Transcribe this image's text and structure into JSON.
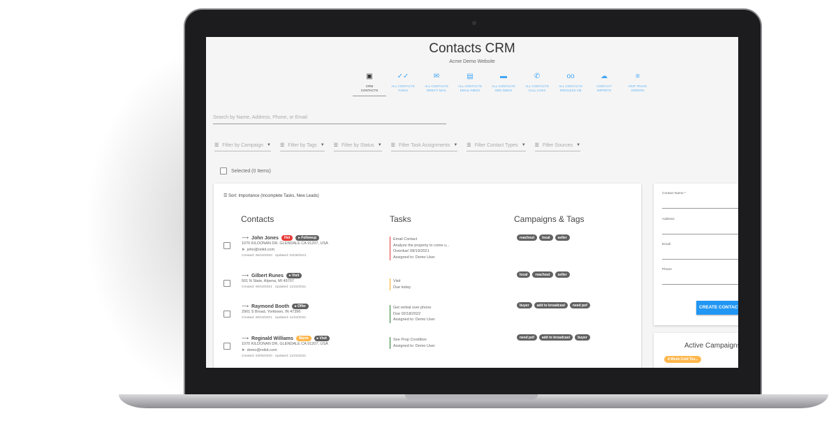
{
  "header": {
    "title": "Contacts CRM",
    "subtitle": "Acme Demo Website"
  },
  "nav": [
    {
      "icon": "clipboard-icon",
      "label1": "CRM",
      "label2": "CONTACTS"
    },
    {
      "icon": "double-check-icon",
      "label1": "ALL CONTACTS",
      "label2": "TASKS"
    },
    {
      "icon": "mail-icon",
      "label1": "ALL CONTACTS",
      "label2": "DIRECT MAIL"
    },
    {
      "icon": "inbox-icon",
      "label1": "ALL CONTACTS",
      "label2": "EMAIL INBOX"
    },
    {
      "icon": "sms-icon",
      "label1": "ALL CONTACTS",
      "label2": "SMS INBOX"
    },
    {
      "icon": "phone-icon",
      "label1": "ALL CONTACTS",
      "label2": "CALL LOGS"
    },
    {
      "icon": "voicemail-icon",
      "label1": "ALL CONTACTS",
      "label2": "RINGLESS VM"
    },
    {
      "icon": "cloud-upload-icon",
      "label1": "CONTACT",
      "label2": "IMPORTS"
    },
    {
      "icon": "skip-trace-icon",
      "label1": "SKIP TRACE",
      "label2": "ORDERS"
    }
  ],
  "search": {
    "placeholder": "Search by Name, Address, Phone, or Email"
  },
  "filters": [
    "Filter by Campaign",
    "Filter by Tags",
    "Filter by Status",
    "Filter Task Assignments",
    "Filter Contact Types",
    "Filter Sources"
  ],
  "selected": "Selected (0 Items)",
  "sort": "Sort: Importance (Incomplete Tasks, New Leads)",
  "columns": {
    "contacts": "Contacts",
    "tasks": "Tasks",
    "campaigns": "Campaigns & Tags"
  },
  "contacts": [
    {
      "name": "John Jones",
      "badges": [
        {
          "text": "Hot",
          "color": "#e53935"
        },
        {
          "text": "▸ Followup",
          "color": "#616161"
        }
      ],
      "address": "1070 KILDONAN DR, GLENDALE CA 91207, USA",
      "email": "john@reikit.com",
      "created": "Created: 05/15/2020",
      "updated": "Updated: 03/28/2021",
      "task": [
        "Email Contact",
        "Analyze the property to come u...",
        "Overdue! 08/19/2021",
        "Assigned to: Demo User"
      ],
      "task_color": "#e53935",
      "tags": [
        "reachout",
        "local",
        "seller"
      ]
    },
    {
      "name": "Gilbert Runes",
      "badges": [
        {
          "text": "▸ Visit",
          "color": "#616161"
        }
      ],
      "address": "501 N State, Alpena, MI 49707",
      "email": "",
      "created": "Created: 06/18/2021",
      "updated": "Updated: 11/22/2021",
      "task": [
        "Visit",
        "Due today"
      ],
      "task_color": "#f9a825",
      "tags": [
        "local",
        "reachout",
        "seller"
      ]
    },
    {
      "name": "Raymond Booth",
      "badges": [
        {
          "text": "▸ Offer",
          "color": "#616161"
        }
      ],
      "address": "2901 S Broad, Yorktown, IN 47396",
      "email": "",
      "created": "Created: 06/18/2021",
      "updated": "Updated: 11/22/2021",
      "task": [
        "Get verbal over phone",
        "Due 02/18/2022",
        "Assigned to: Demo User"
      ],
      "task_color": "#2e7d32",
      "tags": [
        "buyer",
        "add to broadcast",
        "need pof"
      ]
    },
    {
      "name": "Reginald Williams",
      "badges": [
        {
          "text": "Warm",
          "color": "#ffb74d"
        },
        {
          "text": "▸ Visit",
          "color": "#616161"
        }
      ],
      "address": "1070 KILDONAN DR, GLENDALE CA 91207, USA",
      "email": "demo@reikit.com",
      "created": "Created: 03/06/2020",
      "updated": "Updated: 11/22/2021",
      "task": [
        "See Prop Condition",
        "Assigned to: Demo User"
      ],
      "task_color": "#2e7d32",
      "tags": [
        "need pof",
        "add to broadcast",
        "buyer"
      ]
    }
  ],
  "form": {
    "fields": [
      "Contact Name *",
      "Address",
      "Email",
      "Phone"
    ],
    "button": "CREATE CONTACT"
  },
  "campaigns": {
    "title": "Active Campaigns",
    "items": [
      "4 Week Cold Tex..."
    ]
  }
}
